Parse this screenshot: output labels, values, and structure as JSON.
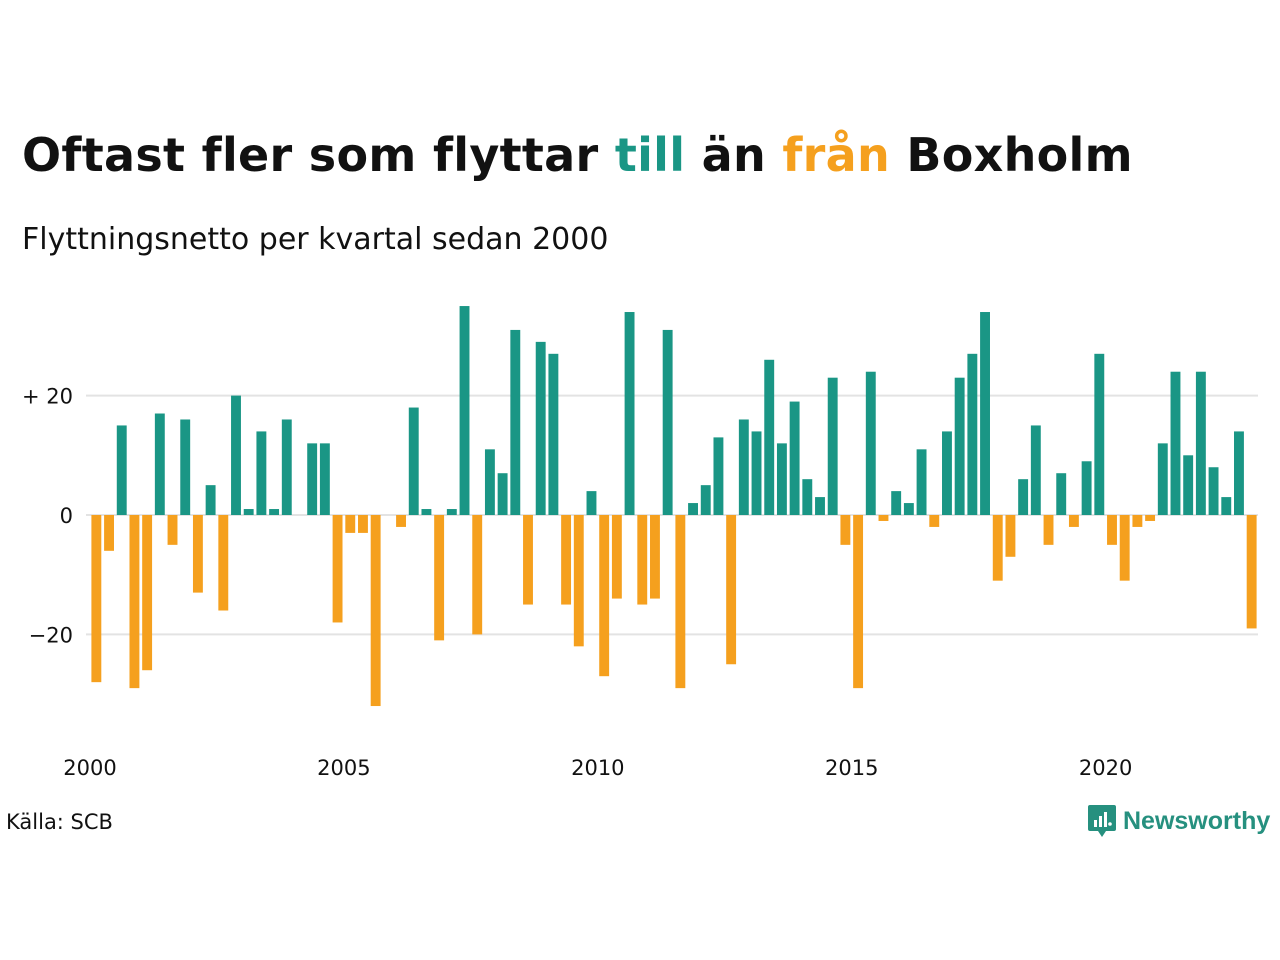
{
  "title": {
    "prefix": "Oftast fler som flyttar ",
    "word_in": "till",
    "middle": " än ",
    "word_out": "från",
    "suffix": " Boxholm"
  },
  "subtitle": "Flyttningsnetto per kvartal sedan 2000",
  "source": "Källa: SCB",
  "brand": "Newsworthy",
  "colors": {
    "positive": "#1a9685",
    "negative": "#f5a01e",
    "grid": "#e3e3e3",
    "brand": "#26907f"
  },
  "chart_data": {
    "type": "bar",
    "x_start": "2000 Q1",
    "x_ticks": [
      "2000",
      "2005",
      "2010",
      "2015",
      "2020"
    ],
    "y_ticks": [
      {
        "value": 20,
        "label": "+ 20"
      },
      {
        "value": 0,
        "label": "0"
      },
      {
        "value": -20,
        "label": "−20"
      }
    ],
    "ylim": [
      -33,
      36
    ],
    "grid": true,
    "values": [
      -28,
      -6,
      15,
      -29,
      -26,
      17,
      -5,
      16,
      -13,
      5,
      -16,
      20,
      1,
      14,
      1,
      16,
      0,
      12,
      12,
      -18,
      -3,
      -3,
      -32,
      0,
      -2,
      18,
      1,
      -21,
      1,
      35,
      -20,
      11,
      7,
      31,
      -15,
      29,
      27,
      -15,
      -22,
      4,
      -27,
      -14,
      34,
      -15,
      -14,
      31,
      -29,
      2,
      5,
      13,
      -25,
      16,
      14,
      26,
      12,
      19,
      6,
      3,
      23,
      -5,
      -29,
      24,
      -1,
      4,
      2,
      11,
      -2,
      14,
      23,
      27,
      34,
      -11,
      -7,
      6,
      15,
      -5,
      7,
      -2,
      9,
      27,
      -5,
      -11,
      -2,
      -1,
      12,
      24,
      10,
      24,
      8,
      3,
      14,
      -19
    ]
  }
}
